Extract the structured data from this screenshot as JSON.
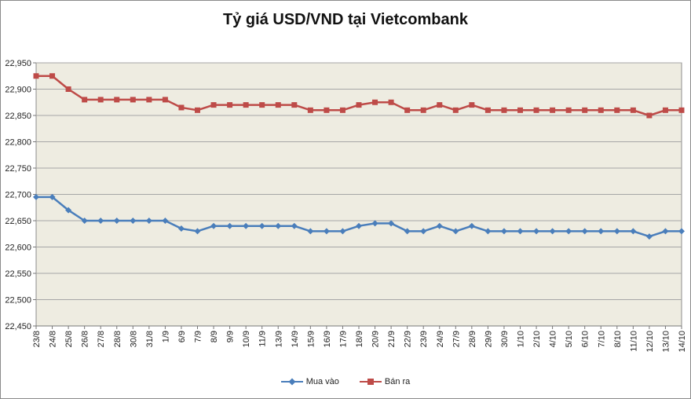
{
  "chart_data": {
    "type": "line",
    "title": "Tỷ giá USD/VND tại Vietcombank",
    "xlabel": "",
    "ylabel": "",
    "ylim": [
      22450,
      22950
    ],
    "ytick_step": 50,
    "grid": true,
    "legend_position": "bottom",
    "colors": {
      "plot_bg": "#eeece1",
      "grid": "#a6a6a6",
      "series1": "#4a7ebb",
      "series2": "#be4b48"
    },
    "categories": [
      "23/8",
      "24/8",
      "25/8",
      "26/8",
      "27/8",
      "28/8",
      "30/8",
      "31/8",
      "1/9",
      "6/9",
      "7/9",
      "8/9",
      "9/9",
      "10/9",
      "11/9",
      "13/9",
      "14/9",
      "15/9",
      "16/9",
      "17/9",
      "18/9",
      "20/9",
      "21/9",
      "22/9",
      "23/9",
      "24/9",
      "27/9",
      "28/9",
      "29/9",
      "30/9",
      "1/10",
      "2/10",
      "4/10",
      "5/10",
      "6/10",
      "7/10",
      "8/10",
      "11/10",
      "12/10",
      "13/10",
      "14/10"
    ],
    "ytick_labels": [
      "22,450",
      "22,500",
      "22,550",
      "22,600",
      "22,650",
      "22,700",
      "22,750",
      "22,800",
      "22,850",
      "22,900",
      "22,950"
    ],
    "series": [
      {
        "name": "Mua vào",
        "marker": "diamond",
        "values": [
          22695,
          22695,
          22670,
          22650,
          22650,
          22650,
          22650,
          22650,
          22650,
          22635,
          22630,
          22640,
          22640,
          22640,
          22640,
          22640,
          22640,
          22630,
          22630,
          22630,
          22640,
          22645,
          22645,
          22630,
          22630,
          22640,
          22630,
          22640,
          22630,
          22630,
          22630,
          22630,
          22630,
          22630,
          22630,
          22630,
          22630,
          22630,
          22620,
          22630,
          22630
        ]
      },
      {
        "name": "Bán ra",
        "marker": "square",
        "values": [
          22925,
          22925,
          22900,
          22880,
          22880,
          22880,
          22880,
          22880,
          22880,
          22865,
          22860,
          22870,
          22870,
          22870,
          22870,
          22870,
          22870,
          22860,
          22860,
          22860,
          22870,
          22875,
          22875,
          22860,
          22860,
          22870,
          22860,
          22870,
          22860,
          22860,
          22860,
          22860,
          22860,
          22860,
          22860,
          22860,
          22860,
          22860,
          22850,
          22860,
          22860
        ]
      }
    ]
  }
}
